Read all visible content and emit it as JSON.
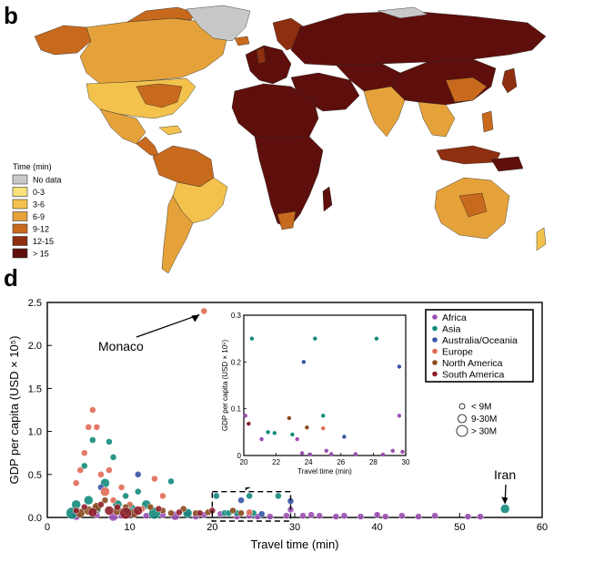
{
  "panels": {
    "map_letter": "b",
    "chart_letter": "d"
  },
  "map": {
    "legend": {
      "title": "Time (min)",
      "items": [
        {
          "label": "No data",
          "color": "#c8c8c8"
        },
        {
          "label": "0-3",
          "color": "#fbe27a"
        },
        {
          "label": "3-6",
          "color": "#f3c24d"
        },
        {
          "label": "6-9",
          "color": "#e6a23a"
        },
        {
          "label": "9-12",
          "color": "#c86a1e"
        },
        {
          "label": "12-15",
          "color": "#8e2f10"
        },
        {
          "label": "> 15",
          "color": "#5e0f0c"
        }
      ]
    }
  },
  "chart_data": [
    {
      "type": "scatter",
      "xlabel": "Travel time (min)",
      "ylabel": "GDP per capita (USD × 10⁵)",
      "xlim": [
        0,
        60
      ],
      "ylim": [
        0,
        2.5
      ],
      "xticks": [
        "0",
        "10",
        "20",
        "30",
        "40",
        "50",
        "60"
      ],
      "yticks": [
        "0.0",
        "0.5",
        "1.0",
        "1.5",
        "2.0",
        "2.5"
      ],
      "legend_placement": "top-right",
      "annotations": [
        {
          "text": "Monaco",
          "x": 19,
          "y": 2.4
        },
        {
          "text": "Iran",
          "x": 55.5,
          "y": 0.1
        }
      ],
      "size_legend": [
        {
          "label": "< 9M",
          "r": 3
        },
        {
          "label": "9-30M",
          "r": 4.5
        },
        {
          "label": "> 30M",
          "r": 6
        }
      ],
      "zoom_box": {
        "x": [
          20,
          29.5
        ],
        "y": [
          0,
          0.3
        ]
      },
      "series": [
        {
          "name": "Africa",
          "color": "#9b4fb3",
          "points": [
            [
              3.5,
              0.02,
              2
            ],
            [
              6,
              0.03,
              1
            ],
            [
              8,
              0.01,
              2
            ],
            [
              9,
              0.02,
              1
            ],
            [
              10.5,
              0.03,
              1
            ],
            [
              12,
              0.02,
              1
            ],
            [
              14,
              0.03,
              1
            ],
            [
              15.5,
              0.02,
              2
            ],
            [
              17,
              0.04,
              1
            ],
            [
              18,
              0.01,
              1
            ],
            [
              19,
              0.03,
              1
            ],
            [
              21,
              0.04,
              1
            ],
            [
              23,
              0.01,
              1
            ],
            [
              24.5,
              0.02,
              1
            ],
            [
              25.5,
              0.01,
              1
            ],
            [
              27,
              0.01,
              1
            ],
            [
              29,
              0.02,
              1
            ],
            [
              29.5,
              0.09,
              1
            ],
            [
              31,
              0.02,
              1
            ],
            [
              32,
              0.03,
              1
            ],
            [
              33,
              0.02,
              1
            ],
            [
              35,
              0.01,
              1
            ],
            [
              36,
              0.02,
              1
            ],
            [
              38,
              0.01,
              1
            ],
            [
              40,
              0.03,
              1
            ],
            [
              41,
              0.01,
              1
            ],
            [
              43,
              0.02,
              1
            ],
            [
              45,
              0.01,
              1
            ],
            [
              47,
              0.02,
              1
            ],
            [
              51,
              0.01,
              1
            ],
            [
              52.5,
              0.01,
              1
            ]
          ]
        },
        {
          "name": "Asia",
          "color": "#138a7c",
          "points": [
            [
              3,
              0.05,
              3
            ],
            [
              3.5,
              0.15,
              2
            ],
            [
              4.5,
              0.6,
              1
            ],
            [
              5,
              0.2,
              2
            ],
            [
              5.5,
              0.9,
              1
            ],
            [
              6,
              0.1,
              2
            ],
            [
              7,
              0.4,
              2
            ],
            [
              7.5,
              0.88,
              1
            ],
            [
              8,
              0.7,
              1
            ],
            [
              8.5,
              0.15,
              2
            ],
            [
              9.5,
              0.25,
              1
            ],
            [
              10,
              0.1,
              3
            ],
            [
              11,
              0.3,
              1
            ],
            [
              12,
              0.15,
              2
            ],
            [
              13,
              0.05,
              3
            ],
            [
              15,
              0.42,
              1
            ],
            [
              17,
              0.05,
              2
            ],
            [
              20.5,
              0.25,
              1
            ],
            [
              21.5,
              0.05,
              1
            ],
            [
              22,
              0.05,
              1
            ],
            [
              23,
              0.05,
              1
            ],
            [
              24.5,
              0.25,
              1
            ],
            [
              25,
              0.05,
              1
            ],
            [
              28,
              0.25,
              1
            ],
            [
              55.5,
              0.1,
              2
            ]
          ]
        },
        {
          "name": "Australia/Oceania",
          "color": "#3a54a4",
          "points": [
            [
              6.5,
              0.35,
              1
            ],
            [
              11,
              0.5,
              1
            ],
            [
              23.5,
              0.2,
              1
            ],
            [
              26,
              0.04,
              1
            ],
            [
              29.5,
              0.19,
              1
            ]
          ]
        },
        {
          "name": "Europe",
          "color": "#e06a55",
          "points": [
            [
              3.5,
              0.4,
              1
            ],
            [
              4,
              0.55,
              1
            ],
            [
              4.5,
              0.75,
              1
            ],
            [
              5,
              1.05,
              1
            ],
            [
              5.5,
              1.25,
              1
            ],
            [
              6,
              1.05,
              1
            ],
            [
              6.5,
              0.5,
              1
            ],
            [
              7,
              0.3,
              2
            ],
            [
              7.5,
              0.55,
              1
            ],
            [
              8,
              0.2,
              1
            ],
            [
              9,
              0.35,
              1
            ],
            [
              10,
              0.15,
              1
            ],
            [
              11.5,
              0.1,
              1
            ],
            [
              13,
              0.45,
              1
            ],
            [
              14,
              0.25,
              1
            ],
            [
              19,
              2.4,
              1
            ],
            [
              24.5,
              0.06,
              1
            ]
          ]
        },
        {
          "name": "North America",
          "color": "#8a4a1c",
          "points": [
            [
              4,
              0.05,
              2
            ],
            [
              5,
              0.08,
              2
            ],
            [
              6,
              0.12,
              2
            ],
            [
              7,
              0.2,
              1
            ],
            [
              8.5,
              0.08,
              2
            ],
            [
              9.5,
              0.12,
              1
            ],
            [
              10.5,
              0.05,
              2
            ],
            [
              12.5,
              0.12,
              1
            ],
            [
              14,
              0.08,
              1
            ],
            [
              15,
              0.05,
              1
            ],
            [
              16.5,
              0.1,
              1
            ],
            [
              18,
              0.05,
              1
            ],
            [
              19.5,
              0.06,
              1
            ],
            [
              22.5,
              0.08,
              1
            ],
            [
              23.5,
              0.05,
              1
            ]
          ]
        },
        {
          "name": "South America",
          "color": "#8e1f2a",
          "points": [
            [
              3.5,
              0.08,
              1
            ],
            [
              4.5,
              0.12,
              1
            ],
            [
              5.5,
              0.06,
              2
            ],
            [
              6.5,
              0.15,
              1
            ],
            [
              7.5,
              0.08,
              2
            ],
            [
              8.5,
              0.12,
              1
            ],
            [
              9.5,
              0.05,
              3
            ],
            [
              11,
              0.08,
              2
            ],
            [
              13.5,
              0.1,
              1
            ],
            [
              16,
              0.06,
              1
            ],
            [
              18.5,
              0.05,
              1
            ],
            [
              20,
              0.08,
              1
            ]
          ]
        }
      ]
    },
    {
      "type": "scatter",
      "xlabel": "Travel time (min)",
      "ylabel": "GDP per capita (USD × 10⁵)",
      "xlim": [
        20,
        30
      ],
      "ylim": [
        0,
        0.3
      ],
      "xticks": [
        "20",
        "22",
        "24",
        "26",
        "28",
        "30"
      ],
      "yticks": [
        "0",
        "0.1",
        "0.2",
        "0.3"
      ],
      "points": [
        {
          "x": 20.5,
          "y": 0.25,
          "c": "Asia"
        },
        {
          "x": 21.5,
          "y": 0.05,
          "c": "Asia"
        },
        {
          "x": 21.9,
          "y": 0.048,
          "c": "Asia"
        },
        {
          "x": 23.0,
          "y": 0.045,
          "c": "Asia"
        },
        {
          "x": 24.4,
          "y": 0.25,
          "c": "Asia"
        },
        {
          "x": 24.9,
          "y": 0.085,
          "c": "Asia"
        },
        {
          "x": 28.2,
          "y": 0.25,
          "c": "Asia"
        },
        {
          "x": 20.1,
          "y": 0.085,
          "c": "Africa"
        },
        {
          "x": 21.1,
          "y": 0.035,
          "c": "Africa"
        },
        {
          "x": 23.3,
          "y": 0.035,
          "c": "Africa"
        },
        {
          "x": 23.6,
          "y": 0.005,
          "c": "Africa"
        },
        {
          "x": 24.1,
          "y": 0.002,
          "c": "Africa"
        },
        {
          "x": 25.1,
          "y": 0.01,
          "c": "Africa"
        },
        {
          "x": 25.4,
          "y": 0.003,
          "c": "Africa"
        },
        {
          "x": 26.9,
          "y": 0.003,
          "c": "Africa"
        },
        {
          "x": 28.6,
          "y": 0.002,
          "c": "Africa"
        },
        {
          "x": 29.2,
          "y": 0.01,
          "c": "Africa"
        },
        {
          "x": 29.6,
          "y": 0.085,
          "c": "Africa"
        },
        {
          "x": 29.8,
          "y": 0.008,
          "c": "Africa"
        },
        {
          "x": 23.7,
          "y": 0.2,
          "c": "Australia/Oceania"
        },
        {
          "x": 26.2,
          "y": 0.04,
          "c": "Australia/Oceania"
        },
        {
          "x": 29.6,
          "y": 0.19,
          "c": "Australia/Oceania"
        },
        {
          "x": 24.9,
          "y": 0.058,
          "c": "Europe"
        },
        {
          "x": 22.8,
          "y": 0.08,
          "c": "North America"
        },
        {
          "x": 23.9,
          "y": 0.06,
          "c": "North America"
        },
        {
          "x": 20.3,
          "y": 0.068,
          "c": "South America"
        }
      ]
    }
  ]
}
